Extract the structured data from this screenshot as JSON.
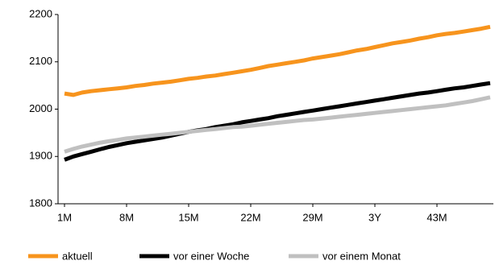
{
  "chart_data": {
    "type": "line",
    "categories": [
      "1M",
      null,
      null,
      null,
      null,
      null,
      null,
      "8M",
      null,
      null,
      null,
      null,
      null,
      null,
      "15M",
      null,
      null,
      null,
      null,
      null,
      null,
      "22M",
      null,
      null,
      null,
      null,
      null,
      null,
      "29M",
      null,
      null,
      null,
      null,
      null,
      null,
      "3Y",
      null,
      null,
      null,
      null,
      null,
      null,
      "43M",
      null,
      null,
      null,
      null,
      null,
      null
    ],
    "series": [
      {
        "name": "aktuell",
        "color": "#f7941d",
        "values": [
          2033,
          2030,
          2035,
          2038,
          2040,
          2042,
          2044,
          2046,
          2049,
          2051,
          2054,
          2056,
          2058,
          2061,
          2064,
          2066,
          2069,
          2071,
          2074,
          2077,
          2080,
          2083,
          2087,
          2091,
          2094,
          2097,
          2100,
          2103,
          2107,
          2110,
          2113,
          2116,
          2120,
          2124,
          2127,
          2131,
          2135,
          2139,
          2142,
          2145,
          2149,
          2152,
          2156,
          2159,
          2161,
          2164,
          2167,
          2170,
          2174
        ]
      },
      {
        "name": "vor einer Woche",
        "color": "#000000",
        "values": [
          1893,
          1900,
          1905,
          1910,
          1915,
          1920,
          1924,
          1928,
          1931,
          1934,
          1937,
          1940,
          1944,
          1948,
          1952,
          1955,
          1958,
          1962,
          1965,
          1968,
          1972,
          1975,
          1978,
          1981,
          1985,
          1988,
          1991,
          1994,
          1997,
          2000,
          2003,
          2006,
          2009,
          2012,
          2015,
          2018,
          2021,
          2024,
          2027,
          2030,
          2033,
          2035,
          2038,
          2041,
          2044,
          2046,
          2049,
          2052,
          2055
        ]
      },
      {
        "name": "vor einem Monat",
        "color": "#c0c0c0",
        "values": [
          1910,
          1916,
          1921,
          1925,
          1929,
          1932,
          1935,
          1938,
          1940,
          1942,
          1944,
          1946,
          1948,
          1950,
          1952,
          1954,
          1956,
          1958,
          1960,
          1962,
          1963,
          1965,
          1967,
          1969,
          1971,
          1973,
          1975,
          1977,
          1978,
          1980,
          1982,
          1984,
          1986,
          1988,
          1990,
          1992,
          1994,
          1996,
          1998,
          2000,
          2002,
          2004,
          2006,
          2008,
          2011,
          2014,
          2017,
          2021,
          2025
        ]
      }
    ],
    "ylim": [
      1800,
      2200
    ],
    "yticks": [
      1800,
      1900,
      2000,
      2100,
      2200
    ],
    "grid": false
  }
}
